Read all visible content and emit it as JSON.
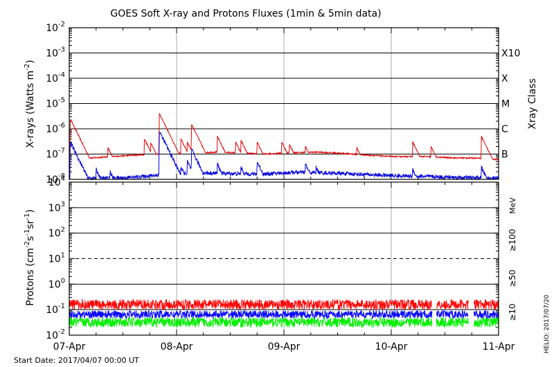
{
  "title": "GOES Soft X-ray and Protons Fluxes   (1min & 5min data)",
  "start_date": "Start Date: 2017/04/07 00:00 UT",
  "credit": "HELIO: 2017/07/20",
  "colors": {
    "xray_long": "#e00000",
    "xray_short": "#0000dd",
    "protons_10": "#ff0000",
    "protons_50": "#0000ff",
    "protons_100": "#00ee00",
    "grid": "#000000",
    "day_line": "#aaaaaa"
  },
  "chart_data": [
    {
      "type": "line",
      "panel": "xrays",
      "ylabel_main": "X-rays (Watts m",
      "ylabel_sup": "-2",
      "ylabel_end": ")",
      "y_scale": "log",
      "ylim": [
        1e-08,
        0.01
      ],
      "y_ticks": [
        {
          "base": "10",
          "exp": "-8"
        },
        {
          "base": "10",
          "exp": "-7"
        },
        {
          "base": "10",
          "exp": "-6"
        },
        {
          "base": "10",
          "exp": "-5"
        },
        {
          "base": "10",
          "exp": "-4"
        },
        {
          "base": "10",
          "exp": "-3"
        },
        {
          "base": "10",
          "exp": "-2"
        }
      ],
      "right_axis_label": "Xray Class",
      "classes": [
        "B",
        "C",
        "M",
        "X",
        "X10"
      ],
      "x_ticks": [
        "07-Apr",
        "08-Apr",
        "09-Apr",
        "10-Apr",
        "11-Apr"
      ],
      "xlim": [
        "2017-04-07",
        "2017-04-11"
      ],
      "grid": "horizontal solid lines at each decade; vertical gray lines at day boundaries",
      "series": [
        {
          "key": "long",
          "color": "#e00000",
          "baseline": [
            [
              0.0,
              1e-07
            ],
            [
              0.02,
              1.3e-07
            ],
            [
              0.2,
              7e-08
            ],
            [
              0.4,
              8e-08
            ],
            [
              0.6,
              9e-08
            ],
            [
              0.8,
              1e-07
            ],
            [
              1.1,
              1.1e-07
            ],
            [
              1.4,
              1.2e-07
            ],
            [
              1.6,
              1.1e-07
            ],
            [
              1.8,
              1e-07
            ],
            [
              2.0,
              1.1e-07
            ],
            [
              2.3,
              1.2e-07
            ],
            [
              2.5,
              1.1e-07
            ],
            [
              2.8,
              9e-08
            ],
            [
              3.0,
              8e-08
            ],
            [
              3.3,
              8e-08
            ],
            [
              3.6,
              7e-08
            ],
            [
              3.8,
              7e-08
            ],
            [
              4.0,
              6e-08
            ]
          ],
          "peaks": [
            {
              "t": 0.01,
              "v": 2.5e-06
            },
            {
              "t": 0.08,
              "v": 5e-07
            },
            {
              "t": 0.36,
              "v": 1.8e-07
            },
            {
              "t": 0.7,
              "v": 4e-07
            },
            {
              "t": 0.76,
              "v": 2.8e-07
            },
            {
              "t": 0.84,
              "v": 4e-06
            },
            {
              "t": 1.04,
              "v": 4e-07
            },
            {
              "t": 1.1,
              "v": 3e-07
            },
            {
              "t": 1.14,
              "v": 1.5e-06
            },
            {
              "t": 1.38,
              "v": 5e-07
            },
            {
              "t": 1.55,
              "v": 3e-07
            },
            {
              "t": 1.6,
              "v": 3.5e-07
            },
            {
              "t": 1.75,
              "v": 3e-07
            },
            {
              "t": 1.98,
              "v": 3e-07
            },
            {
              "t": 2.05,
              "v": 2.5e-07
            },
            {
              "t": 2.2,
              "v": 2e-07
            },
            {
              "t": 2.68,
              "v": 1.8e-07
            },
            {
              "t": 3.2,
              "v": 3e-07
            },
            {
              "t": 3.37,
              "v": 2e-07
            },
            {
              "t": 3.84,
              "v": 5e-07
            }
          ]
        },
        {
          "key": "short",
          "color": "#0000dd",
          "baseline": [
            [
              0.0,
              1.2e-08
            ],
            [
              0.3,
              1.1e-08
            ],
            [
              0.6,
              1.2e-08
            ],
            [
              0.9,
              1.6e-08
            ],
            [
              1.2,
              1.8e-08
            ],
            [
              1.5,
              1.7e-08
            ],
            [
              1.8,
              1.6e-08
            ],
            [
              2.1,
              1.9e-08
            ],
            [
              2.4,
              1.8e-08
            ],
            [
              2.7,
              1.6e-08
            ],
            [
              3.0,
              1.4e-08
            ],
            [
              3.3,
              1.3e-08
            ],
            [
              3.6,
              1.2e-08
            ],
            [
              4.0,
              1.1e-08
            ]
          ],
          "peaks": [
            {
              "t": 0.01,
              "v": 3e-07
            },
            {
              "t": 0.25,
              "v": 2.5e-08
            },
            {
              "t": 0.38,
              "v": 2e-08
            },
            {
              "t": 0.84,
              "v": 8e-07
            },
            {
              "t": 1.04,
              "v": 3e-08
            },
            {
              "t": 1.1,
              "v": 5e-08
            },
            {
              "t": 1.14,
              "v": 1.5e-07
            },
            {
              "t": 1.38,
              "v": 4e-08
            },
            {
              "t": 1.6,
              "v": 3e-08
            },
            {
              "t": 1.75,
              "v": 5e-08
            },
            {
              "t": 2.2,
              "v": 4e-08
            },
            {
              "t": 2.3,
              "v": 3e-08
            },
            {
              "t": 3.2,
              "v": 2.5e-08
            },
            {
              "t": 3.84,
              "v": 3e-08
            }
          ]
        }
      ]
    },
    {
      "type": "line",
      "panel": "protons",
      "ylabel_main": "Protons (cm",
      "ylabel_sup1": "-2",
      "ylabel_mid": "s",
      "ylabel_sup2": "-1",
      "ylabel_mid2": "sr",
      "ylabel_sup3": "-1",
      "ylabel_end": ")",
      "y_scale": "log",
      "ylim": [
        0.01,
        10000
      ],
      "y_ticks": [
        {
          "base": "10",
          "exp": "-2"
        },
        {
          "base": "10",
          "exp": "-1"
        },
        {
          "base": "10",
          "exp": "0"
        },
        {
          "base": "10",
          "exp": "1"
        },
        {
          "base": "10",
          "exp": "2"
        },
        {
          "base": "10",
          "exp": "3"
        },
        {
          "base": "10",
          "exp": "4"
        }
      ],
      "dashed_level": 10,
      "x_ticks": [
        "07-Apr",
        "08-Apr",
        "09-Apr",
        "10-Apr",
        "11-Apr"
      ],
      "xlim": [
        "2017-04-07",
        "2017-04-11"
      ],
      "units_label": "MeV",
      "series": [
        {
          "key": "ge10",
          "name": "≥10",
          "color": "#ff0000",
          "level": 0.16,
          "spread": 0.45
        },
        {
          "key": "ge50",
          "name": "≥50",
          "color": "#0000ff",
          "level": 0.065,
          "spread": 0.35
        },
        {
          "key": "ge100",
          "name": "≥100",
          "color": "#00ee00",
          "level": 0.032,
          "spread": 0.45
        }
      ],
      "data_gap_days": [
        [
          3.38,
          3.42
        ],
        [
          3.72,
          3.77
        ]
      ]
    }
  ]
}
